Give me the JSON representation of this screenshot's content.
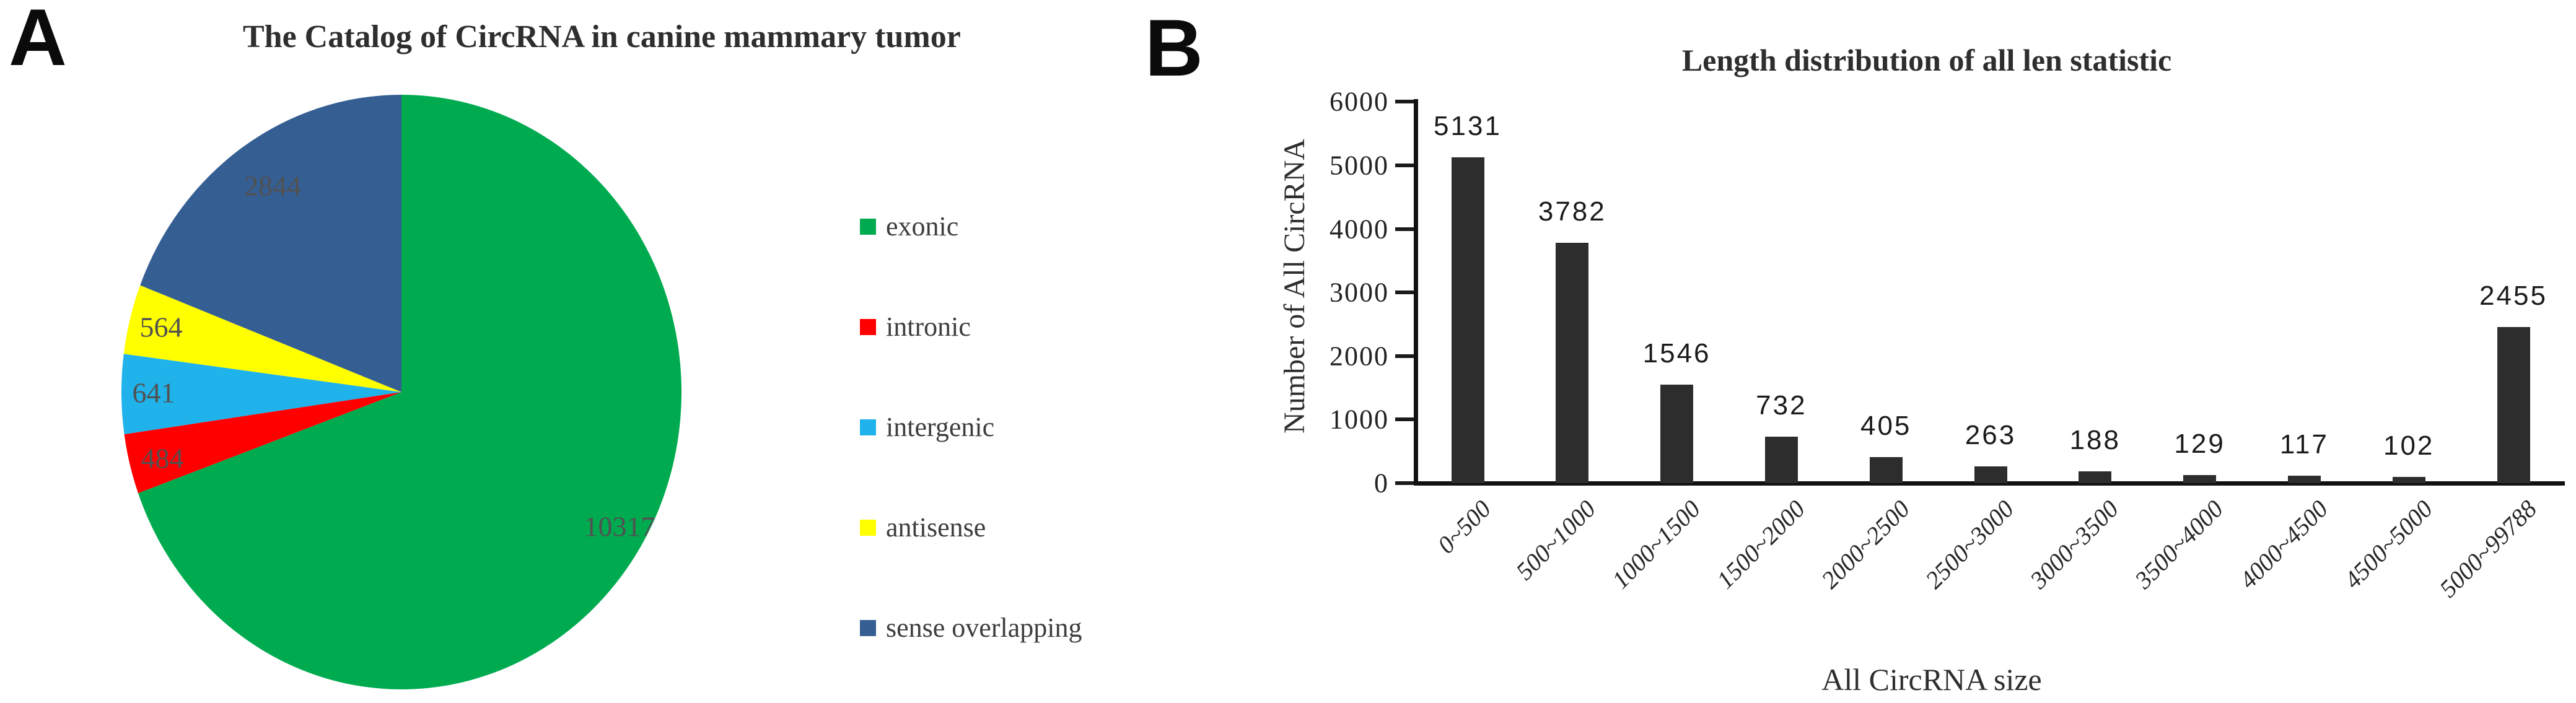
{
  "panels": {
    "a_letter": "A",
    "b_letter": "B"
  },
  "chart_data": [
    {
      "type": "pie",
      "title": "The Catalog of CircRNA in canine mammary tumor",
      "slices": [
        {
          "label": "exonic",
          "value": 10317,
          "color": "#00AB50"
        },
        {
          "label": "intronic",
          "value": 484,
          "color": "#FE0000"
        },
        {
          "label": "intergenic",
          "value": 641,
          "color": "#20B2EB"
        },
        {
          "label": "antisense",
          "value": 564,
          "color": "#FFFF00"
        },
        {
          "label": "sense overlapping",
          "value": 2844,
          "color": "#355E93"
        }
      ],
      "start_angle_deg": 0,
      "direction": "clockwise",
      "legend_position": "right",
      "label_color": "#515151"
    },
    {
      "type": "bar",
      "title": "Length distribution of all len statistic",
      "categories": [
        "0~500",
        "500~1000",
        "1000~1500",
        "1500~2000",
        "2000~2500",
        "2500~3000",
        "3000~3500",
        "3500~4000",
        "4000~4500",
        "4500~5000",
        "5000~99788"
      ],
      "values": [
        5131,
        3782,
        1546,
        732,
        405,
        263,
        188,
        129,
        117,
        102,
        2455
      ],
      "xlabel": "All CircRNA size",
      "ylabel": "Number of All CircRNA",
      "ylim": [
        0,
        6000
      ],
      "ytick_step": 1000,
      "yticks": [
        0,
        1000,
        2000,
        3000,
        4000,
        5000,
        6000
      ],
      "bar_color": "#2d2d2d",
      "grid": false
    }
  ]
}
